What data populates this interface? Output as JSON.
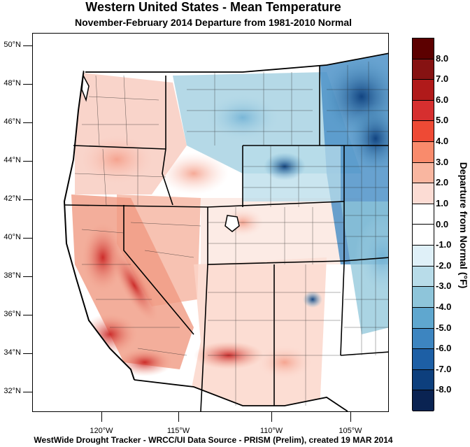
{
  "title": "Western United States - Mean Temperature",
  "subtitle": "November-February 2014  Departure from 1981-2010 Normal",
  "footer": "WestWide Drought Tracker - WRCC/UI  Data Source - PRISM (Prelim), created 19 MAR 2014",
  "legend": {
    "title": "Departure from Normal (°F)",
    "labels": [
      "8.0",
      "7.0",
      "6.0",
      "5.0",
      "4.0",
      "3.0",
      "2.0",
      "1.0",
      "0.0",
      "-1.0",
      "-2.0",
      "-3.0",
      "-4.0",
      "-5.0",
      "-6.0",
      "-7.0",
      "-8.0"
    ],
    "colors": [
      "#5c0000",
      "#861212",
      "#b01a1a",
      "#d62f2f",
      "#ee4a35",
      "#f98b6c",
      "#f9b6a0",
      "#fcdcd4",
      "#ffffff",
      "#ffffff",
      "#dff0f8",
      "#b8dce9",
      "#8ec5da",
      "#5fa7cf",
      "#3d85c0",
      "#1d5fa5",
      "#0d3f7d",
      "#0a2352"
    ]
  },
  "map": {
    "lat_labels": [
      "50°N",
      "48°N",
      "46°N",
      "44°N",
      "42°N",
      "40°N",
      "38°N",
      "36°N",
      "34°N",
      "32°N"
    ],
    "lon_labels": [
      "120°W",
      "115°W",
      "110°W",
      "105°W"
    ]
  }
}
